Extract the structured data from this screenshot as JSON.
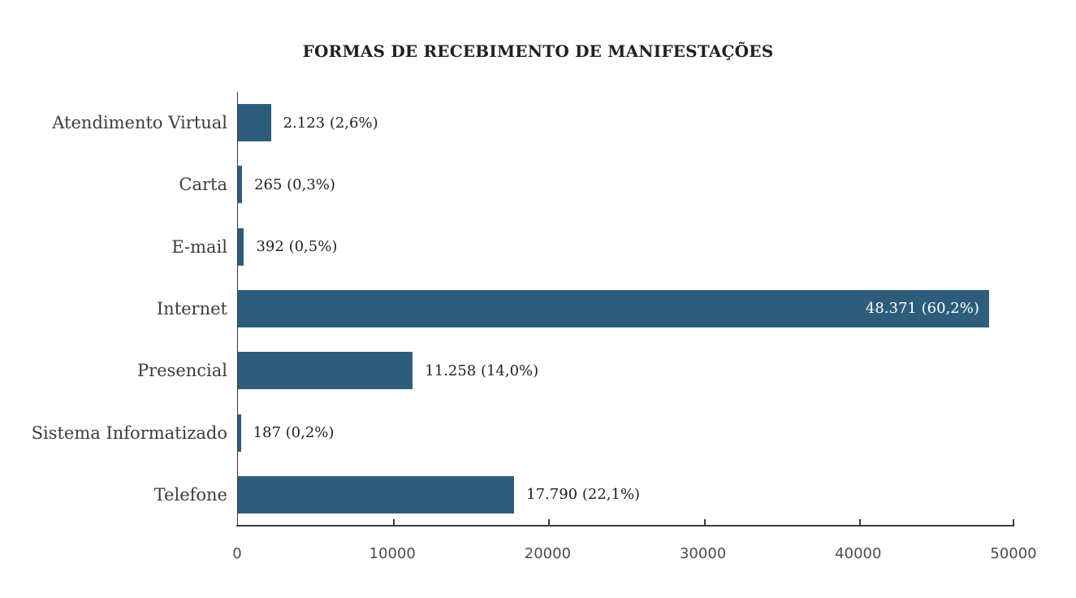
{
  "colors": {
    "background": "#ffffff",
    "bar": "#2e5d7c",
    "axis": "#3b3b3b",
    "title_text": "#232021",
    "category_text": "#3c3c3b",
    "value_text": "#232021",
    "value_text_inside": "#ffffff",
    "tick_text": "#4b4b4b"
  },
  "chart_data": {
    "type": "bar",
    "orientation": "horizontal",
    "title": "FORMAS DE RECEBIMENTO DE MANIFESTAÇÕES",
    "categories": [
      "Atendimento Virtual",
      "Carta",
      "E-mail",
      "Internet",
      "Presencial",
      "Sistema Informatizado",
      "Telefone"
    ],
    "values": [
      2123,
      265,
      392,
      48371,
      11258,
      187,
      17790
    ],
    "percentages": [
      2.6,
      0.3,
      0.5,
      60.2,
      14.0,
      0.2,
      22.1
    ],
    "value_labels": [
      "2.123 (2,6%)",
      "265 (0,3%)",
      "392 (0,5%)",
      "48.371 (60,2%)",
      "11.258 (14,0%)",
      "187 (0,2%)",
      "17.790 (22,1%)"
    ],
    "xlabel": "",
    "ylabel": "",
    "x_axis": {
      "min": 0,
      "max": 50000,
      "tick_interval": 10000,
      "tick_labels": [
        "0",
        "10000",
        "20000",
        "30000",
        "40000",
        "50000"
      ]
    },
    "grid": false,
    "legend": false
  }
}
